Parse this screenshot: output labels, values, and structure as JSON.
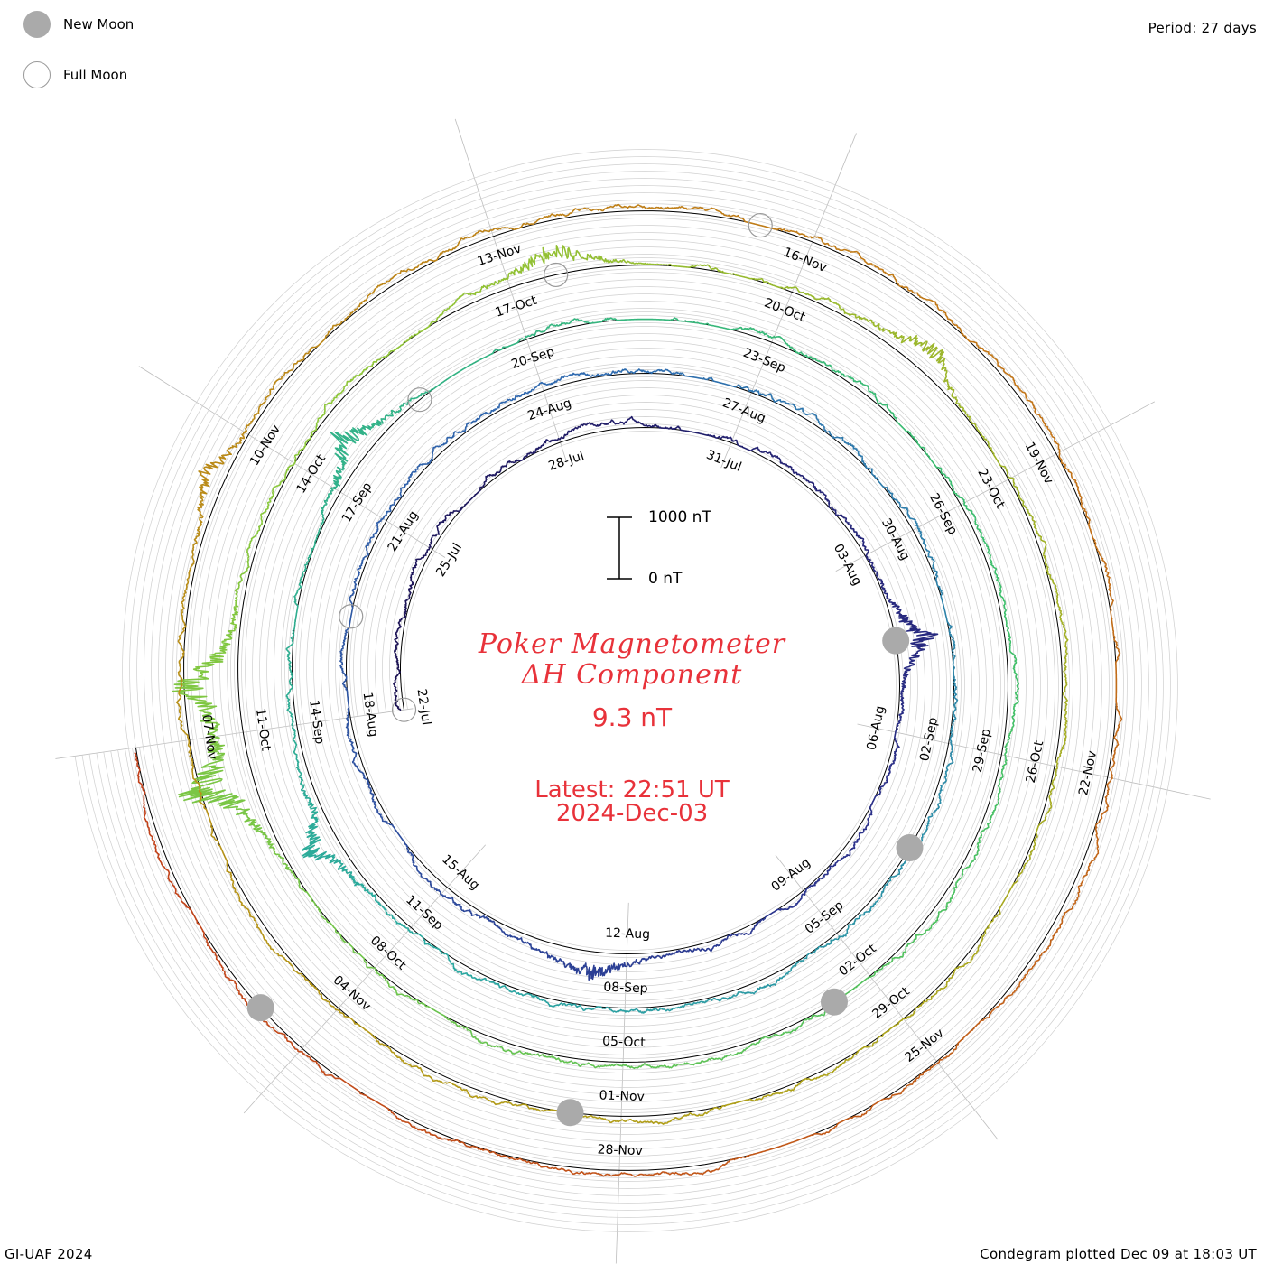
{
  "header": {
    "period": "Period: 27 days"
  },
  "legend": {
    "new_moon": "New Moon",
    "full_moon": "Full Moon",
    "new_moon_color": "#aaaaaa",
    "full_moon_color": "#999999"
  },
  "title": {
    "line1": "Poker Magnetometer",
    "line2": "ΔH Component",
    "value": "9.3 nT",
    "latest": "Latest: 22:51 UT",
    "date": "2024-Dec-03",
    "color": "#e8323a"
  },
  "scale": {
    "top_label": "1000 nT",
    "bottom_label": "0 nT"
  },
  "footer": {
    "credit": "GI-UAF 2024",
    "plotted": "Condegram plotted Dec 09 at 18:03 UT"
  },
  "chart_data": {
    "type": "line",
    "period_days": 27,
    "start_date": "2024-07-22",
    "end_date": "2024-12-03",
    "y_units": "nT",
    "grid": true,
    "legend_position": "top-left",
    "rings": [
      {
        "color": "#1a1050",
        "labels": [
          "22-Jul",
          "25-Jul",
          "28-Jul",
          "31-Jul",
          "03-Aug",
          "06-Aug",
          "09-Aug",
          "12-Aug",
          "15-Aug"
        ]
      },
      {
        "color": "#2a35a8",
        "labels": [
          "18-Aug",
          "21-Aug",
          "24-Aug",
          "27-Aug",
          "30-Aug",
          "02-Sep",
          "05-Sep",
          "08-Sep",
          "11-Sep"
        ]
      },
      {
        "color": "#2aa8a0",
        "labels": [
          "14-Sep",
          "17-Sep",
          "20-Sep",
          "23-Sep",
          "26-Sep",
          "29-Sep",
          "02-Oct",
          "05-Oct",
          "08-Oct"
        ]
      },
      {
        "color": "#6cbf3a",
        "labels": [
          "11-Oct",
          "14-Oct",
          "17-Oct",
          "20-Oct",
          "23-Oct",
          "26-Oct",
          "29-Oct",
          "01-Nov",
          "04-Nov"
        ]
      },
      {
        "color": "#b0a018",
        "labels": [
          "07-Nov",
          "10-Nov",
          "13-Nov",
          "16-Nov",
          "19-Nov",
          "22-Nov",
          "25-Nov",
          "28-Nov"
        ]
      },
      {
        "color": "#c2401a",
        "labels": []
      }
    ],
    "ring_colors_progression": [
      "#1a1050",
      "#2a2f8a",
      "#2f6ab0",
      "#2aa8a0",
      "#3cbf6a",
      "#8cc83a",
      "#b0a018",
      "#c27a18",
      "#c2401a"
    ],
    "disturbances": [
      {
        "date": "2024-08-04",
        "peak_nT": 700
      },
      {
        "date": "2024-08-12",
        "peak_nT": 450
      },
      {
        "date": "2024-09-12",
        "peak_nT": 600
      },
      {
        "date": "2024-09-17",
        "peak_nT": 650
      },
      {
        "date": "2024-10-10",
        "peak_nT": 1200
      },
      {
        "date": "2024-10-11",
        "peak_nT": 1100
      },
      {
        "date": "2024-10-17",
        "peak_nT": 500
      },
      {
        "date": "2024-10-21",
        "peak_nT": 450
      },
      {
        "date": "2024-11-09",
        "peak_nT": 350
      }
    ],
    "new_moons": [
      "2024-08-04",
      "2024-09-03",
      "2024-10-02",
      "2024-11-01",
      "2024-12-01"
    ],
    "full_moons": [
      "2024-07-21",
      "2024-08-19",
      "2024-09-18",
      "2024-10-17",
      "2024-11-15"
    ]
  }
}
